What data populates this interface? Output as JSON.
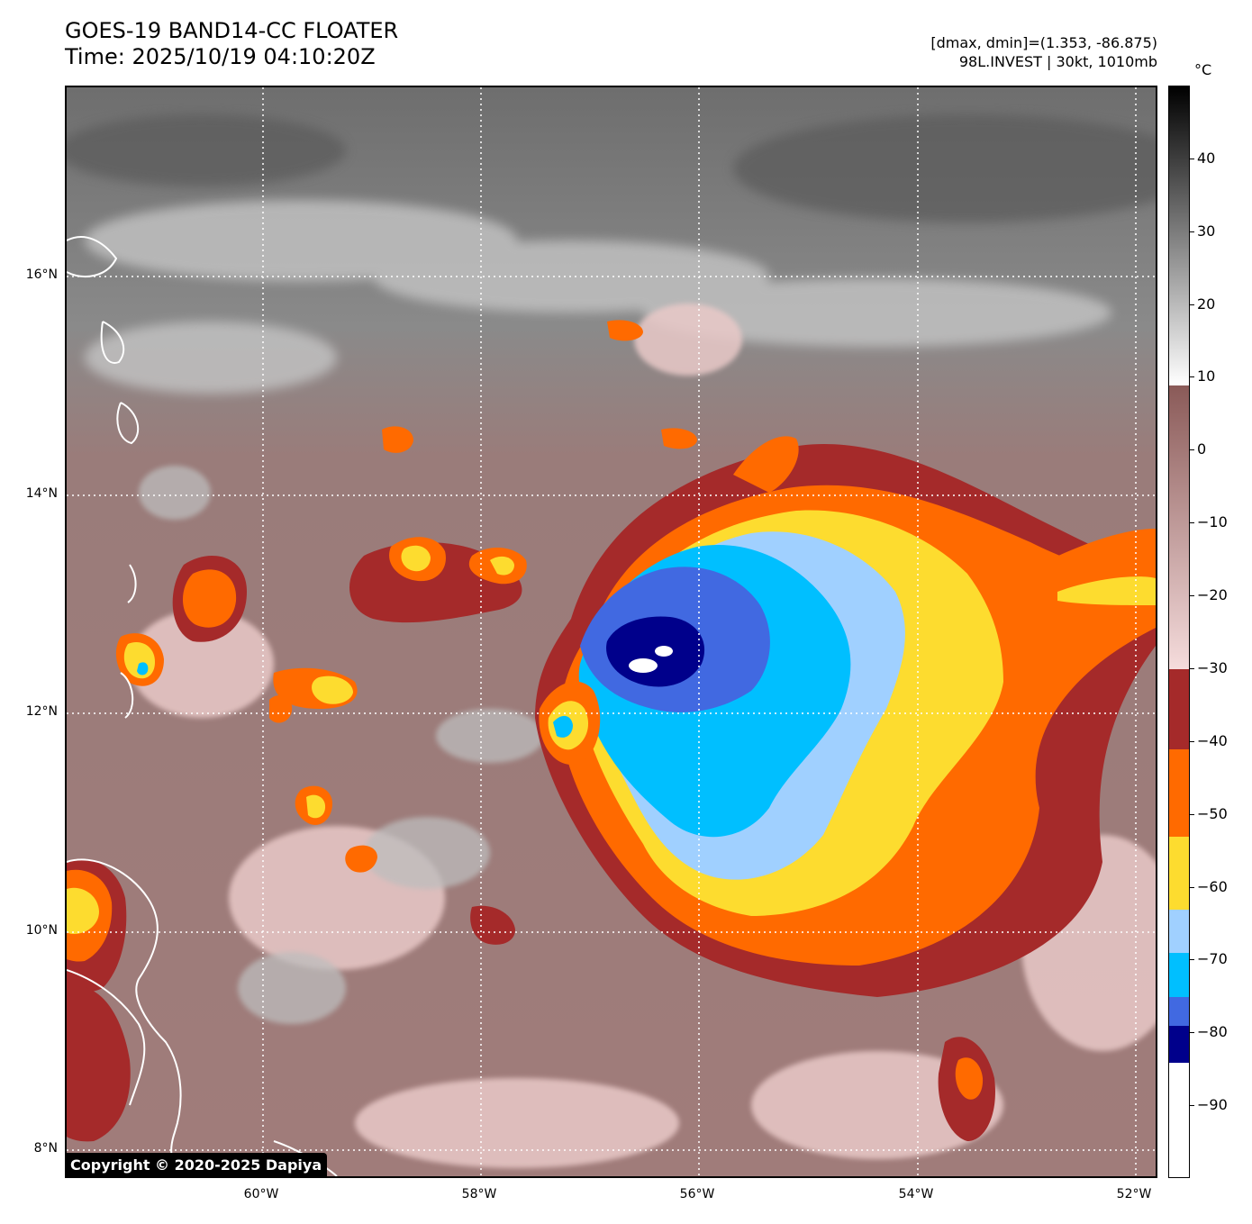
{
  "header": {
    "title": "GOES-19 BAND14-CC FLOATER",
    "time": "Time: 2025/10/19 04:10:20Z",
    "range": "[dmax, dmin]=(1.353, -86.875)",
    "storm": "98L.INVEST | 30kt, 1010mb"
  },
  "colorbar": {
    "unit": "°C",
    "ticks": [
      "40",
      "30",
      "20",
      "10",
      "0",
      "−10",
      "−20",
      "−30",
      "−40",
      "−50",
      "−60",
      "−70",
      "−80",
      "−90"
    ],
    "bands": [
      {
        "from": 50,
        "to": 9,
        "colors": [
          "#000000",
          "#ffffff"
        ]
      },
      {
        "from": 9,
        "to": -30,
        "colors": [
          "#8a5a58",
          "#f5dcdc"
        ]
      },
      {
        "from": -30,
        "to": -41,
        "color": "#a52a2a"
      },
      {
        "from": -41,
        "to": -53,
        "color": "#ff6a00"
      },
      {
        "from": -53,
        "to": -63,
        "color": "#fddc2f"
      },
      {
        "from": -63,
        "to": -69,
        "color": "#a0d0ff"
      },
      {
        "from": -69,
        "to": -75,
        "color": "#00bfff"
      },
      {
        "from": -75,
        "to": -79,
        "color": "#4169e1"
      },
      {
        "from": -79,
        "to": -84,
        "color": "#00008b"
      },
      {
        "from": -84,
        "to": -100,
        "color": "#ffffff"
      }
    ]
  },
  "axes": {
    "lat_labels": [
      "16°N",
      "14°N",
      "12°N",
      "10°N",
      "8°N"
    ],
    "lon_labels": [
      "60°W",
      "58°W",
      "56°W",
      "54°W",
      "52°W"
    ]
  },
  "copyright": "Copyright © 2020-2025 Dapiya"
}
